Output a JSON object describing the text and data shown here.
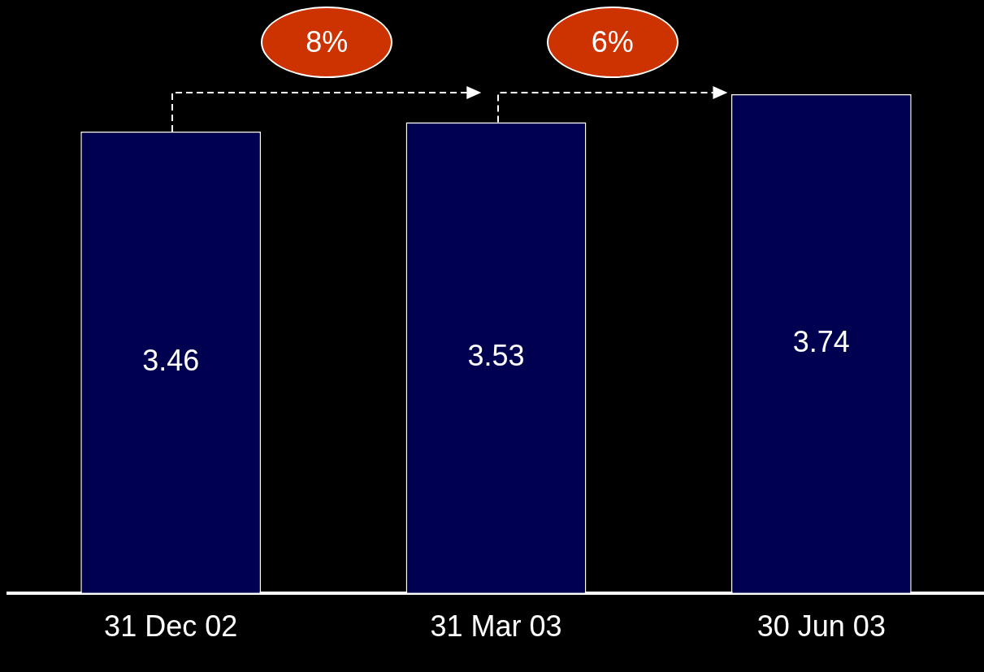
{
  "chart_data": {
    "type": "bar",
    "categories": [
      "31 Dec 02",
      "31 Mar 03",
      "30 Jun 03"
    ],
    "values": [
      3.46,
      3.53,
      3.74
    ],
    "color": "#000050",
    "data_labels": true,
    "annotations": [
      "8%",
      "6%"
    ]
  }
}
